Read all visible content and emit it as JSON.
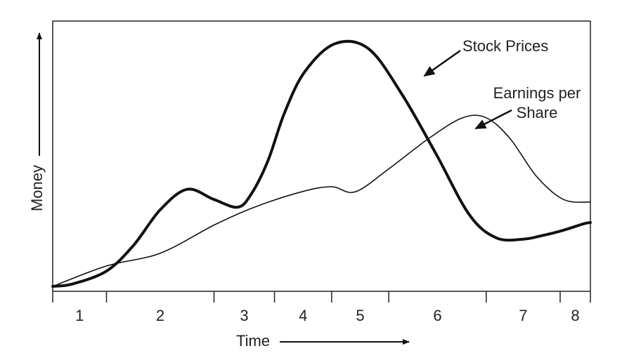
{
  "chart_data": {
    "type": "line",
    "title": "",
    "xlabel": "Time",
    "ylabel": "Money",
    "xlim": [
      0,
      8
    ],
    "ylim": [
      0,
      1
    ],
    "grid": false,
    "legend": "none",
    "period_labels": [
      "1",
      "2",
      "3",
      "4",
      "5",
      "6",
      "7",
      "8"
    ],
    "period_boundaries": [
      0,
      0.8,
      2.4,
      3.3,
      4.15,
      5.0,
      6.45,
      7.55,
      8.0
    ],
    "series": [
      {
        "name": "Stock Prices",
        "color": "#111111",
        "emphasis": "thick",
        "x": [
          0,
          0.3,
          0.8,
          1.2,
          1.6,
          2.0,
          2.4,
          2.75,
          2.95,
          3.2,
          3.45,
          3.75,
          4.2,
          4.7,
          5.2,
          5.7,
          6.2,
          6.6,
          7.0,
          7.3,
          7.6,
          7.9,
          8.0
        ],
        "y": [
          0.0,
          0.01,
          0.06,
          0.16,
          0.3,
          0.38,
          0.34,
          0.31,
          0.36,
          0.49,
          0.68,
          0.84,
          0.95,
          0.93,
          0.75,
          0.52,
          0.28,
          0.19,
          0.185,
          0.2,
          0.22,
          0.245,
          0.25
        ]
      },
      {
        "name": "Earnings per Share",
        "color": "#111111",
        "emphasis": "thin",
        "x": [
          0,
          0.8,
          1.6,
          2.4,
          3.0,
          3.7,
          4.15,
          4.5,
          5.0,
          5.6,
          6.1,
          6.45,
          6.8,
          7.2,
          7.6,
          8.0
        ],
        "y": [
          0.0,
          0.08,
          0.13,
          0.24,
          0.31,
          0.37,
          0.39,
          0.37,
          0.46,
          0.58,
          0.66,
          0.66,
          0.58,
          0.43,
          0.34,
          0.33
        ]
      }
    ],
    "annotations": [
      {
        "label": "Stock Prices",
        "points_to": "Stock Prices"
      },
      {
        "label": "Earnings per Share",
        "lines": [
          "Earnings per",
          "Share"
        ],
        "points_to": "Earnings per Share"
      }
    ]
  }
}
